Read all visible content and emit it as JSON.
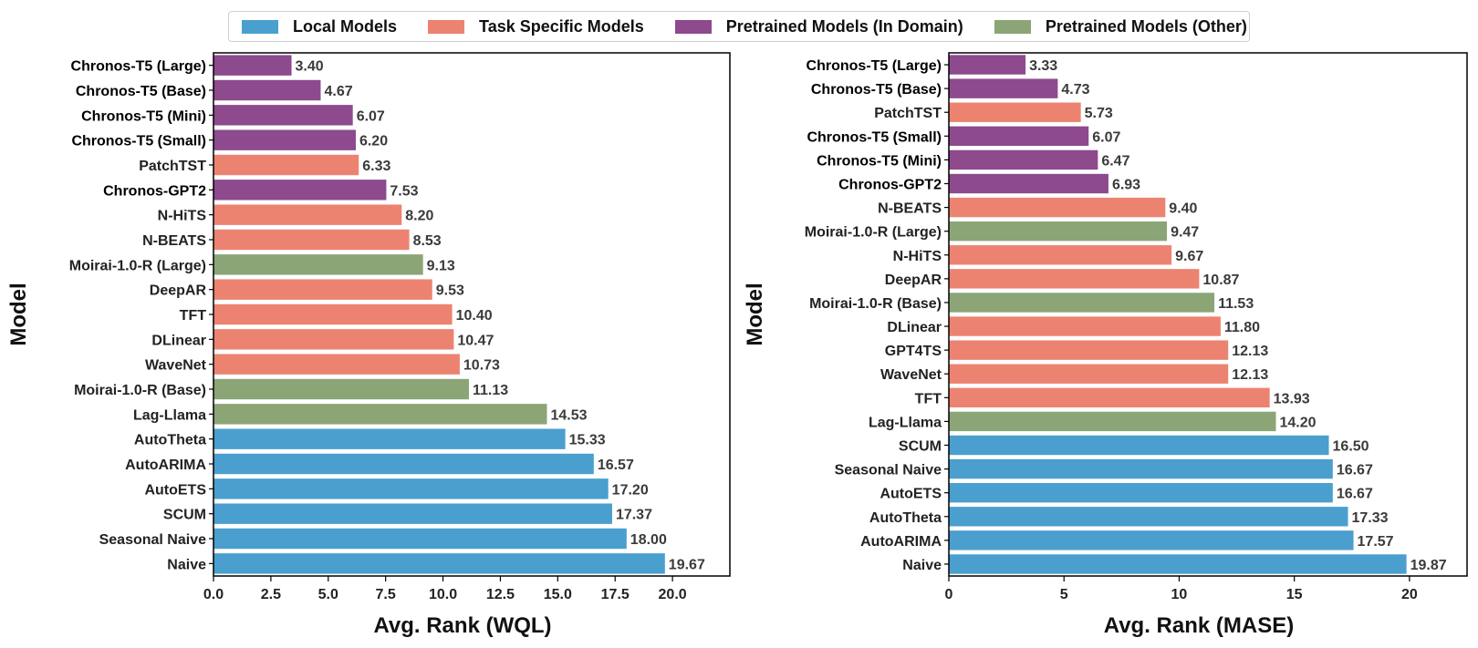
{
  "legend": [
    {
      "label": "Local Models",
      "color": "#4a9fcf"
    },
    {
      "label": "Task Specific Models",
      "color": "#ec8371"
    },
    {
      "label": "Pretrained Models (In Domain)",
      "color": "#8d4a8d"
    },
    {
      "label": "Pretrained Models (Other)",
      "color": "#8ba577"
    }
  ],
  "chart_data": [
    {
      "type": "bar",
      "orientation": "horizontal",
      "xlabel": "Avg. Rank (WQL)",
      "ylabel": "Model",
      "xlim": [
        0,
        22.5
      ],
      "xticks": [
        "0.0",
        "2.5",
        "5.0",
        "7.5",
        "10.0",
        "12.5",
        "15.0",
        "17.5",
        "20.0"
      ],
      "xtick_values": [
        0,
        2.5,
        5,
        7.5,
        10,
        12.5,
        15,
        17.5,
        20
      ],
      "bars": [
        {
          "label": "Chronos-T5 (Large)",
          "value": 3.4,
          "value_label": "3.40",
          "group": "in_domain",
          "bold": true
        },
        {
          "label": "Chronos-T5 (Base)",
          "value": 4.67,
          "value_label": "4.67",
          "group": "in_domain",
          "bold": true
        },
        {
          "label": "Chronos-T5 (Mini)",
          "value": 6.07,
          "value_label": "6.07",
          "group": "in_domain",
          "bold": true
        },
        {
          "label": "Chronos-T5 (Small)",
          "value": 6.2,
          "value_label": "6.20",
          "group": "in_domain",
          "bold": true
        },
        {
          "label": "PatchTST",
          "value": 6.33,
          "value_label": "6.33",
          "group": "task",
          "bold": false
        },
        {
          "label": "Chronos-GPT2",
          "value": 7.53,
          "value_label": "7.53",
          "group": "in_domain",
          "bold": true
        },
        {
          "label": "N-HiTS",
          "value": 8.2,
          "value_label": "8.20",
          "group": "task",
          "bold": false
        },
        {
          "label": "N-BEATS",
          "value": 8.53,
          "value_label": "8.53",
          "group": "task",
          "bold": false
        },
        {
          "label": "Moirai-1.0-R (Large)",
          "value": 9.13,
          "value_label": "9.13",
          "group": "other",
          "bold": false
        },
        {
          "label": "DeepAR",
          "value": 9.53,
          "value_label": "9.53",
          "group": "task",
          "bold": false
        },
        {
          "label": "TFT",
          "value": 10.4,
          "value_label": "10.40",
          "group": "task",
          "bold": false
        },
        {
          "label": "DLinear",
          "value": 10.47,
          "value_label": "10.47",
          "group": "task",
          "bold": false
        },
        {
          "label": "WaveNet",
          "value": 10.73,
          "value_label": "10.73",
          "group": "task",
          "bold": false
        },
        {
          "label": "Moirai-1.0-R (Base)",
          "value": 11.13,
          "value_label": "11.13",
          "group": "other",
          "bold": false
        },
        {
          "label": "Lag-Llama",
          "value": 14.53,
          "value_label": "14.53",
          "group": "other",
          "bold": false
        },
        {
          "label": "AutoTheta",
          "value": 15.33,
          "value_label": "15.33",
          "group": "local",
          "bold": false
        },
        {
          "label": "AutoARIMA",
          "value": 16.57,
          "value_label": "16.57",
          "group": "local",
          "bold": false
        },
        {
          "label": "AutoETS",
          "value": 17.2,
          "value_label": "17.20",
          "group": "local",
          "bold": false
        },
        {
          "label": "SCUM",
          "value": 17.37,
          "value_label": "17.37",
          "group": "local",
          "bold": false
        },
        {
          "label": "Seasonal Naive",
          "value": 18.0,
          "value_label": "18.00",
          "group": "local",
          "bold": false
        },
        {
          "label": "Naive",
          "value": 19.67,
          "value_label": "19.67",
          "group": "local",
          "bold": false
        }
      ]
    },
    {
      "type": "bar",
      "orientation": "horizontal",
      "xlabel": "Avg. Rank (MASE)",
      "ylabel": "Model",
      "xlim": [
        0,
        22.5
      ],
      "xticks": [
        "0",
        "5",
        "10",
        "15",
        "20"
      ],
      "xtick_values": [
        0,
        5,
        10,
        15,
        20
      ],
      "bars": [
        {
          "label": "Chronos-T5 (Large)",
          "value": 3.33,
          "value_label": "3.33",
          "group": "in_domain",
          "bold": true
        },
        {
          "label": "Chronos-T5 (Base)",
          "value": 4.73,
          "value_label": "4.73",
          "group": "in_domain",
          "bold": true
        },
        {
          "label": "PatchTST",
          "value": 5.73,
          "value_label": "5.73",
          "group": "task",
          "bold": false
        },
        {
          "label": "Chronos-T5 (Small)",
          "value": 6.07,
          "value_label": "6.07",
          "group": "in_domain",
          "bold": true
        },
        {
          "label": "Chronos-T5 (Mini)",
          "value": 6.47,
          "value_label": "6.47",
          "group": "in_domain",
          "bold": true
        },
        {
          "label": "Chronos-GPT2",
          "value": 6.93,
          "value_label": "6.93",
          "group": "in_domain",
          "bold": true
        },
        {
          "label": "N-BEATS",
          "value": 9.4,
          "value_label": "9.40",
          "group": "task",
          "bold": false
        },
        {
          "label": "Moirai-1.0-R (Large)",
          "value": 9.47,
          "value_label": "9.47",
          "group": "other",
          "bold": false
        },
        {
          "label": "N-HiTS",
          "value": 9.67,
          "value_label": "9.67",
          "group": "task",
          "bold": false
        },
        {
          "label": "DeepAR",
          "value": 10.87,
          "value_label": "10.87",
          "group": "task",
          "bold": false
        },
        {
          "label": "Moirai-1.0-R (Base)",
          "value": 11.53,
          "value_label": "11.53",
          "group": "other",
          "bold": false
        },
        {
          "label": "DLinear",
          "value": 11.8,
          "value_label": "11.80",
          "group": "task",
          "bold": false
        },
        {
          "label": "GPT4TS",
          "value": 12.13,
          "value_label": "12.13",
          "group": "task",
          "bold": false
        },
        {
          "label": "WaveNet",
          "value": 12.13,
          "value_label": "12.13",
          "group": "task",
          "bold": false
        },
        {
          "label": "TFT",
          "value": 13.93,
          "value_label": "13.93",
          "group": "task",
          "bold": false
        },
        {
          "label": "Lag-Llama",
          "value": 14.2,
          "value_label": "14.20",
          "group": "other",
          "bold": false
        },
        {
          "label": "SCUM",
          "value": 16.5,
          "value_label": "16.50",
          "group": "local",
          "bold": false
        },
        {
          "label": "Seasonal Naive",
          "value": 16.67,
          "value_label": "16.67",
          "group": "local",
          "bold": false
        },
        {
          "label": "AutoETS",
          "value": 16.67,
          "value_label": "16.67",
          "group": "local",
          "bold": false
        },
        {
          "label": "AutoTheta",
          "value": 17.33,
          "value_label": "17.33",
          "group": "local",
          "bold": false
        },
        {
          "label": "AutoARIMA",
          "value": 17.57,
          "value_label": "17.57",
          "group": "local",
          "bold": false
        },
        {
          "label": "Naive",
          "value": 19.87,
          "value_label": "19.87",
          "group": "local",
          "bold": false
        }
      ]
    }
  ],
  "group_colors": {
    "local": "#4a9fcf",
    "task": "#ec8371",
    "in_domain": "#8d4a8d",
    "other": "#8ba577"
  }
}
